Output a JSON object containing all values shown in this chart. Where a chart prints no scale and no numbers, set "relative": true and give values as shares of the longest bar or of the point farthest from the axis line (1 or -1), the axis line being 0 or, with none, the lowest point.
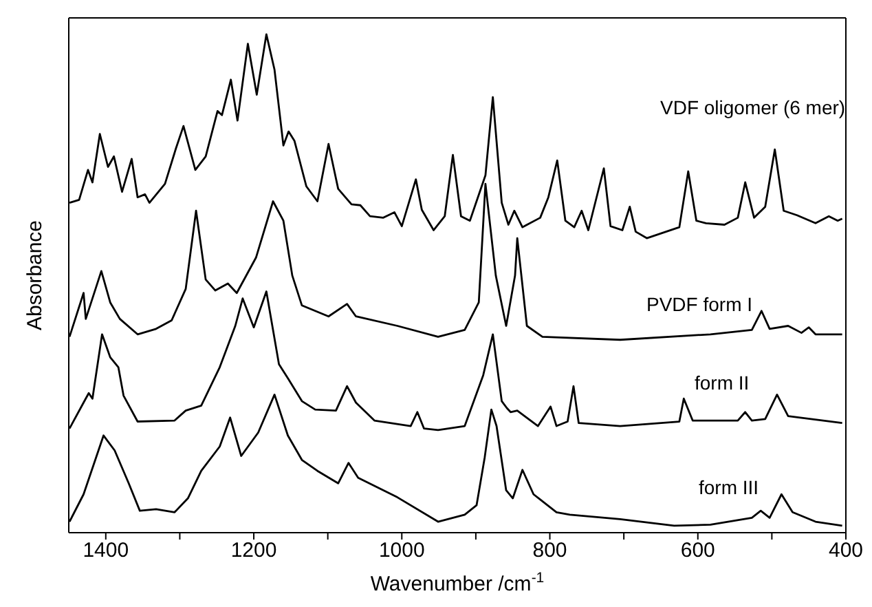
{
  "chart_data": {
    "type": "line",
    "relative": true,
    "xlabel": "Wavenumber /cm$^{-1}$",
    "ylabel": "Absorbance",
    "xlim": [
      1450,
      400
    ],
    "xticks": [
      1400,
      {
        "value": 1300,
        "label": null
      },
      1200,
      {
        "value": 1100,
        "label": null
      },
      1000,
      {
        "value": 900,
        "label": null
      },
      800,
      {
        "value": 700,
        "label": null
      },
      600,
      {
        "value": 500,
        "label": null
      },
      400
    ],
    "marker": "none",
    "line_style": "solid",
    "series": [
      {
        "name": "VDF oligomer (6 mer)",
        "color": "#000000",
        "x": [
          1449,
          1436,
          1424,
          1418,
          1408,
          1397,
          1389,
          1378,
          1365,
          1357,
          1347,
          1341,
          1320,
          1305,
          1295,
          1279,
          1265,
          1249,
          1243,
          1231,
          1222,
          1208,
          1196,
          1183,
          1172,
          1160,
          1153,
          1145,
          1129,
          1114,
          1099,
          1086,
          1068,
          1056,
          1043,
          1025,
          1010,
          1000,
          981,
          973,
          957,
          942,
          931,
          920,
          908,
          887,
          877,
          865,
          856,
          848,
          837,
          813,
          802,
          790,
          779,
          767,
          757,
          748,
          727,
          718,
          702,
          692,
          684,
          669,
          625,
          613,
          602,
          589,
          564,
          546,
          536,
          524,
          509,
          496,
          484,
          466,
          441,
          423,
          411,
          405
        ],
        "values": [
          0.662,
          0.668,
          0.728,
          0.703,
          0.8,
          0.734,
          0.755,
          0.684,
          0.75,
          0.673,
          0.679,
          0.662,
          0.7,
          0.772,
          0.816,
          0.728,
          0.755,
          0.846,
          0.838,
          0.909,
          0.827,
          0.981,
          0.879,
          1.0,
          0.929,
          0.777,
          0.805,
          0.786,
          0.695,
          0.665,
          0.78,
          0.69,
          0.659,
          0.657,
          0.635,
          0.632,
          0.643,
          0.615,
          0.709,
          0.648,
          0.607,
          0.635,
          0.758,
          0.635,
          0.626,
          0.717,
          0.874,
          0.662,
          0.618,
          0.646,
          0.613,
          0.632,
          0.673,
          0.747,
          0.626,
          0.613,
          0.646,
          0.607,
          0.731,
          0.615,
          0.607,
          0.654,
          0.604,
          0.591,
          0.613,
          0.725,
          0.626,
          0.621,
          0.618,
          0.632,
          0.703,
          0.632,
          0.654,
          0.769,
          0.646,
          0.637,
          0.621,
          0.635,
          0.626,
          0.63
        ]
      },
      {
        "name": "PVDF form I",
        "color": "#000000",
        "x": [
          1449,
          1430,
          1427,
          1406,
          1394,
          1381,
          1357,
          1332,
          1311,
          1292,
          1278,
          1265,
          1252,
          1235,
          1223,
          1197,
          1174,
          1160,
          1148,
          1135,
          1099,
          1074,
          1062,
          1006,
          951,
          915,
          896,
          887,
          873,
          859,
          847,
          844,
          831,
          810,
          705,
          583,
          527,
          514,
          503,
          478,
          460,
          450,
          441,
          405
        ],
        "values": [
          0.393,
          0.481,
          0.429,
          0.525,
          0.462,
          0.429,
          0.398,
          0.409,
          0.426,
          0.489,
          0.646,
          0.508,
          0.486,
          0.5,
          0.481,
          0.552,
          0.665,
          0.626,
          0.516,
          0.456,
          0.434,
          0.459,
          0.434,
          0.415,
          0.393,
          0.407,
          0.462,
          0.7,
          0.516,
          0.415,
          0.516,
          0.591,
          0.415,
          0.393,
          0.387,
          0.398,
          0.407,
          0.445,
          0.409,
          0.415,
          0.401,
          0.412,
          0.398,
          0.398
        ]
      },
      {
        "name": "form II",
        "color": "#000000",
        "x": [
          1449,
          1430,
          1423,
          1418,
          1405,
          1394,
          1383,
          1376,
          1357,
          1307,
          1292,
          1271,
          1246,
          1225,
          1215,
          1200,
          1183,
          1166,
          1154,
          1135,
          1117,
          1089,
          1074,
          1062,
          1037,
          988,
          979,
          970,
          951,
          915,
          890,
          877,
          865,
          858,
          853,
          844,
          816,
          799,
          791,
          776,
          768,
          761,
          705,
          625,
          619,
          607,
          546,
          536,
          527,
          509,
          493,
          478,
          405
        ],
        "values": [
          0.209,
          0.261,
          0.28,
          0.269,
          0.398,
          0.352,
          0.332,
          0.275,
          0.223,
          0.225,
          0.245,
          0.255,
          0.332,
          0.415,
          0.47,
          0.412,
          0.484,
          0.338,
          0.31,
          0.264,
          0.247,
          0.245,
          0.294,
          0.261,
          0.225,
          0.214,
          0.242,
          0.209,
          0.206,
          0.214,
          0.316,
          0.398,
          0.264,
          0.25,
          0.242,
          0.245,
          0.214,
          0.253,
          0.214,
          0.223,
          0.294,
          0.22,
          0.214,
          0.223,
          0.269,
          0.225,
          0.225,
          0.242,
          0.225,
          0.228,
          0.277,
          0.234,
          0.22
        ]
      },
      {
        "name": "form III",
        "color": "#000000",
        "x": [
          1449,
          1430,
          1403,
          1388,
          1369,
          1354,
          1332,
          1307,
          1289,
          1271,
          1246,
          1232,
          1217,
          1194,
          1172,
          1154,
          1135,
          1114,
          1086,
          1072,
          1059,
          1006,
          951,
          915,
          899,
          888,
          879,
          872,
          859,
          850,
          837,
          822,
          815,
          791,
          773,
          705,
          632,
          583,
          527,
          515,
          503,
          487,
          472,
          441,
          405
        ],
        "values": [
          0.022,
          0.077,
          0.195,
          0.165,
          0.099,
          0.044,
          0.047,
          0.041,
          0.069,
          0.124,
          0.173,
          0.231,
          0.154,
          0.201,
          0.277,
          0.195,
          0.146,
          0.124,
          0.099,
          0.14,
          0.11,
          0.071,
          0.022,
          0.036,
          0.055,
          0.151,
          0.247,
          0.214,
          0.085,
          0.069,
          0.126,
          0.077,
          0.069,
          0.041,
          0.036,
          0.027,
          0.014,
          0.016,
          0.03,
          0.044,
          0.03,
          0.077,
          0.041,
          0.022,
          0.014
        ]
      }
    ]
  }
}
